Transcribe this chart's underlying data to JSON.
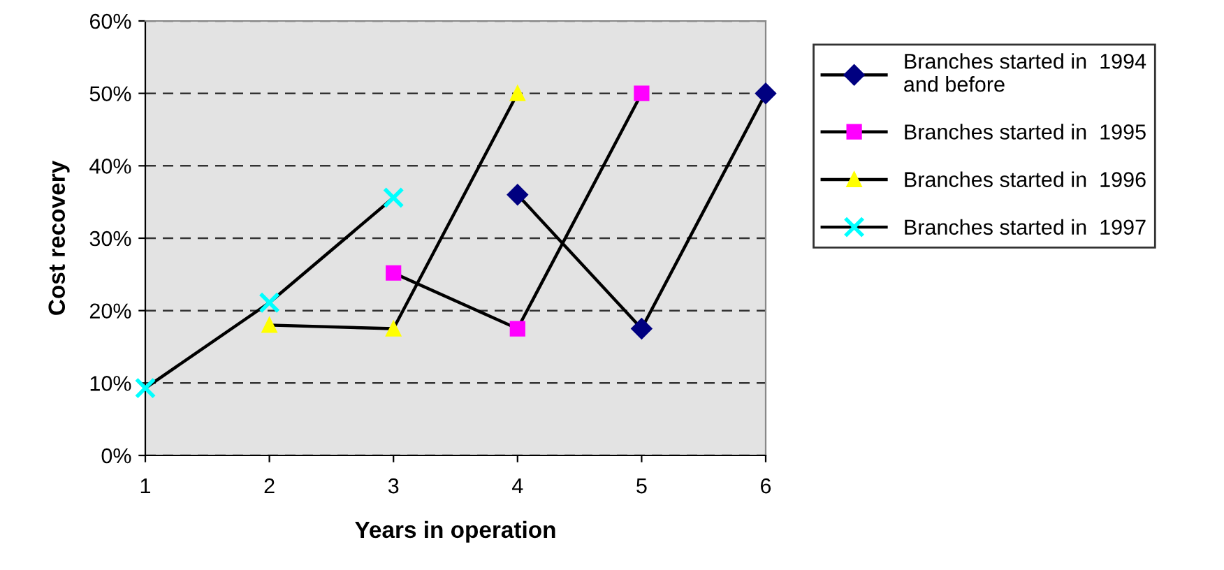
{
  "chart_data": {
    "type": "line",
    "xlabel": "Years in operation",
    "ylabel": "Cost recovery",
    "xlim": [
      1,
      6
    ],
    "xticks": [
      1,
      2,
      3,
      4,
      5,
      6
    ],
    "ylim": [
      0,
      0.6
    ],
    "yticks": [
      {
        "value": 0,
        "label": "0%"
      },
      {
        "value": 0.1,
        "label": "10%"
      },
      {
        "value": 0.2,
        "label": "20%"
      },
      {
        "value": 0.3,
        "label": "30%"
      },
      {
        "value": 0.4,
        "label": "40%"
      },
      {
        "value": 0.5,
        "label": "50%"
      },
      {
        "value": 0.6,
        "label": "60%"
      }
    ],
    "grid": "y",
    "legend": "right",
    "series": [
      {
        "name": "Branches started in  1994\nand before",
        "color": "#000080",
        "marker": "diamond",
        "x": [
          4,
          5,
          6
        ],
        "values": [
          0.36,
          0.175,
          0.5
        ]
      },
      {
        "name": "Branches started in  1995",
        "color": "#ff00ff",
        "marker": "square",
        "x": [
          3,
          4,
          5
        ],
        "values": [
          0.252,
          0.175,
          0.5
        ]
      },
      {
        "name": "Branches started in  1996",
        "color": "#ffff00",
        "marker": "triangle",
        "x": [
          2,
          3,
          4
        ],
        "values": [
          0.18,
          0.175,
          0.5
        ]
      },
      {
        "name": "Branches started in  1997",
        "color": "#00ffff",
        "marker": "cross",
        "x": [
          1,
          2,
          3
        ],
        "values": [
          0.093,
          0.211,
          0.356
        ]
      }
    ]
  }
}
